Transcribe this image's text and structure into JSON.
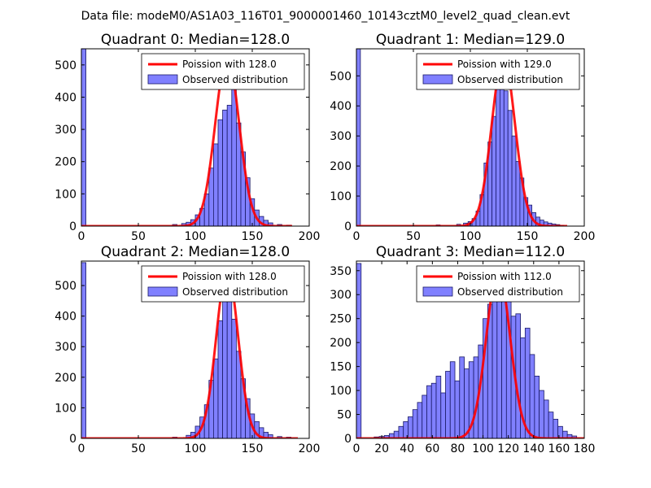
{
  "figure_title": "Data file: modeM0/AS1A03_116T01_9000001460_10143cztM0_level2_quad_clean.evt",
  "colors": {
    "bar_fill": "#8080ff",
    "bar_edge": "#1a1a66",
    "poisson_line": "#ff0000",
    "frame": "#000000"
  },
  "chart_data": [
    {
      "type": "bar",
      "title": "Quadrant 0: Median=128.0",
      "xlabel": "",
      "ylabel": "",
      "xlim": [
        0,
        200
      ],
      "ylim": [
        0,
        550
      ],
      "xticks": [
        0,
        50,
        100,
        150,
        200
      ],
      "yticks": [
        0,
        100,
        200,
        300,
        400,
        500
      ],
      "legend": {
        "position": "top-right",
        "line_label": "Poission with 128.0",
        "bar_label": "Observed distribution"
      },
      "bin_width": 4,
      "bins": [
        {
          "x": 0,
          "count": 550
        },
        {
          "x": 80,
          "count": 5
        },
        {
          "x": 88,
          "count": 8
        },
        {
          "x": 92,
          "count": 12
        },
        {
          "x": 96,
          "count": 20
        },
        {
          "x": 100,
          "count": 35
        },
        {
          "x": 104,
          "count": 55
        },
        {
          "x": 108,
          "count": 100
        },
        {
          "x": 112,
          "count": 180
        },
        {
          "x": 116,
          "count": 255
        },
        {
          "x": 120,
          "count": 330
        },
        {
          "x": 124,
          "count": 360
        },
        {
          "x": 128,
          "count": 375
        },
        {
          "x": 132,
          "count": 450
        },
        {
          "x": 136,
          "count": 320
        },
        {
          "x": 140,
          "count": 230
        },
        {
          "x": 144,
          "count": 150
        },
        {
          "x": 148,
          "count": 85
        },
        {
          "x": 152,
          "count": 50
        },
        {
          "x": 156,
          "count": 30
        },
        {
          "x": 160,
          "count": 18
        },
        {
          "x": 164,
          "count": 10
        },
        {
          "x": 172,
          "count": 5
        },
        {
          "x": 180,
          "count": 3
        }
      ],
      "poisson": {
        "mean": 128.0,
        "peak": 525,
        "sigma": 10.5,
        "range": [
          0,
          185
        ]
      }
    },
    {
      "type": "bar",
      "title": "Quadrant 1: Median=129.0",
      "xlabel": "",
      "ylabel": "",
      "xlim": [
        0,
        200
      ],
      "ylim": [
        0,
        590
      ],
      "xticks": [
        0,
        50,
        100,
        150,
        200
      ],
      "yticks": [
        0,
        100,
        200,
        300,
        400,
        500
      ],
      "legend": {
        "position": "top-right",
        "line_label": "Poission with 129.0",
        "bar_label": "Observed distribution"
      },
      "bin_width": 3.5,
      "bins": [
        {
          "x": 0,
          "count": 590
        },
        {
          "x": 70,
          "count": 4
        },
        {
          "x": 88,
          "count": 6
        },
        {
          "x": 94,
          "count": 10
        },
        {
          "x": 98,
          "count": 15
        },
        {
          "x": 101.5,
          "count": 25
        },
        {
          "x": 105,
          "count": 50
        },
        {
          "x": 108.5,
          "count": 105
        },
        {
          "x": 112,
          "count": 210
        },
        {
          "x": 115.5,
          "count": 280
        },
        {
          "x": 119,
          "count": 365
        },
        {
          "x": 122.5,
          "count": 460
        },
        {
          "x": 126,
          "count": 560
        },
        {
          "x": 129.5,
          "count": 450
        },
        {
          "x": 133,
          "count": 385
        },
        {
          "x": 136.5,
          "count": 300
        },
        {
          "x": 140,
          "count": 215
        },
        {
          "x": 143.5,
          "count": 160
        },
        {
          "x": 147,
          "count": 95
        },
        {
          "x": 150.5,
          "count": 70
        },
        {
          "x": 154,
          "count": 45
        },
        {
          "x": 157.5,
          "count": 30
        },
        {
          "x": 161,
          "count": 20
        },
        {
          "x": 164.5,
          "count": 14
        },
        {
          "x": 168,
          "count": 10
        },
        {
          "x": 171.5,
          "count": 7
        },
        {
          "x": 175,
          "count": 5
        },
        {
          "x": 178.5,
          "count": 3
        }
      ],
      "poisson": {
        "mean": 129.0,
        "peak": 560,
        "sigma": 10.2,
        "range": [
          0,
          185
        ]
      }
    },
    {
      "type": "bar",
      "title": "Quadrant 2: Median=128.0",
      "xlabel": "",
      "ylabel": "",
      "xlim": [
        0,
        200
      ],
      "ylim": [
        0,
        580
      ],
      "xticks": [
        0,
        50,
        100,
        150,
        200
      ],
      "yticks": [
        0,
        100,
        200,
        300,
        400,
        500
      ],
      "legend": {
        "position": "top-right",
        "line_label": "Poission with 128.0",
        "bar_label": "Observed distribution"
      },
      "bin_width": 4,
      "bins": [
        {
          "x": 0,
          "count": 575
        },
        {
          "x": 80,
          "count": 4
        },
        {
          "x": 92,
          "count": 10
        },
        {
          "x": 96,
          "count": 20
        },
        {
          "x": 100,
          "count": 40
        },
        {
          "x": 104,
          "count": 70
        },
        {
          "x": 108,
          "count": 110
        },
        {
          "x": 112,
          "count": 190
        },
        {
          "x": 116,
          "count": 260
        },
        {
          "x": 120,
          "count": 385
        },
        {
          "x": 124,
          "count": 465
        },
        {
          "x": 128,
          "count": 540
        },
        {
          "x": 132,
          "count": 390
        },
        {
          "x": 136,
          "count": 285
        },
        {
          "x": 140,
          "count": 195
        },
        {
          "x": 144,
          "count": 130
        },
        {
          "x": 148,
          "count": 80
        },
        {
          "x": 152,
          "count": 55
        },
        {
          "x": 156,
          "count": 35
        },
        {
          "x": 160,
          "count": 20
        },
        {
          "x": 164,
          "count": 12
        },
        {
          "x": 172,
          "count": 6
        },
        {
          "x": 180,
          "count": 4
        }
      ],
      "poisson": {
        "mean": 128.0,
        "peak": 550,
        "sigma": 9.6,
        "range": [
          0,
          190
        ]
      }
    },
    {
      "type": "bar",
      "title": "Quadrant 3: Median=112.0",
      "xlabel": "",
      "ylabel": "",
      "xlim": [
        0,
        180
      ],
      "ylim": [
        0,
        370
      ],
      "xticks": [
        0,
        20,
        40,
        60,
        80,
        100,
        120,
        140,
        160,
        180
      ],
      "yticks": [
        0,
        50,
        100,
        150,
        200,
        250,
        300,
        350
      ],
      "legend": {
        "position": "top-right",
        "line_label": "Poission with 112.0",
        "bar_label": "Observed distribution"
      },
      "bin_width": 3.7,
      "bins": [
        {
          "x": 0,
          "count": 365
        },
        {
          "x": 14,
          "count": 3
        },
        {
          "x": 18,
          "count": 4
        },
        {
          "x": 22,
          "count": 6
        },
        {
          "x": 26,
          "count": 10
        },
        {
          "x": 29.7,
          "count": 15
        },
        {
          "x": 33.4,
          "count": 25
        },
        {
          "x": 37.1,
          "count": 35
        },
        {
          "x": 40.8,
          "count": 45
        },
        {
          "x": 44.5,
          "count": 60
        },
        {
          "x": 48.2,
          "count": 75
        },
        {
          "x": 51.9,
          "count": 90
        },
        {
          "x": 55.6,
          "count": 110
        },
        {
          "x": 59.3,
          "count": 115
        },
        {
          "x": 63.0,
          "count": 130
        },
        {
          "x": 66.7,
          "count": 95
        },
        {
          "x": 70.4,
          "count": 140
        },
        {
          "x": 74.1,
          "count": 160
        },
        {
          "x": 77.8,
          "count": 120
        },
        {
          "x": 81.5,
          "count": 170
        },
        {
          "x": 85.2,
          "count": 145
        },
        {
          "x": 88.9,
          "count": 160
        },
        {
          "x": 92.6,
          "count": 170
        },
        {
          "x": 96.3,
          "count": 195
        },
        {
          "x": 100.0,
          "count": 250
        },
        {
          "x": 103.7,
          "count": 280
        },
        {
          "x": 107.4,
          "count": 300
        },
        {
          "x": 111.1,
          "count": 340
        },
        {
          "x": 114.8,
          "count": 350
        },
        {
          "x": 118.5,
          "count": 300
        },
        {
          "x": 122.2,
          "count": 255
        },
        {
          "x": 125.9,
          "count": 260
        },
        {
          "x": 129.6,
          "count": 210
        },
        {
          "x": 133.3,
          "count": 230
        },
        {
          "x": 137.0,
          "count": 175
        },
        {
          "x": 140.7,
          "count": 130
        },
        {
          "x": 144.4,
          "count": 100
        },
        {
          "x": 148.1,
          "count": 80
        },
        {
          "x": 151.8,
          "count": 55
        },
        {
          "x": 155.5,
          "count": 40
        },
        {
          "x": 159.2,
          "count": 25
        },
        {
          "x": 162.9,
          "count": 15
        },
        {
          "x": 166.6,
          "count": 8
        },
        {
          "x": 170.3,
          "count": 5
        }
      ],
      "poisson": {
        "mean": 112.0,
        "peak": 350,
        "sigma": 9.4,
        "range": [
          0,
          180
        ]
      }
    }
  ]
}
